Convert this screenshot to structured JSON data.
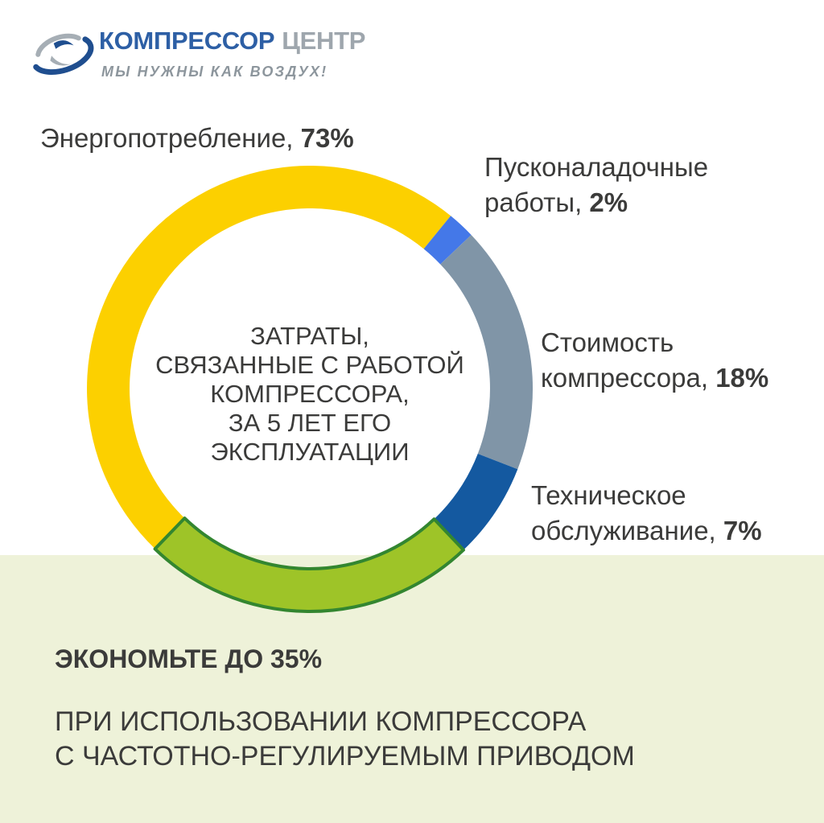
{
  "header": {
    "brand_primary": "КОМПРЕССОР",
    "brand_secondary": "ЦЕНТР",
    "tagline": "МЫ НУЖНЫ КАК ВОЗДУХ!",
    "brand_primary_color": "#2D5FA5",
    "brand_secondary_color": "#9EA6AD",
    "tagline_color": "#8D969D"
  },
  "chart_data": {
    "type": "pie",
    "subtype": "donut",
    "title": "ЗАТРАТЫ, СВЯЗАННЫЕ С РАБОТОЙ КОМПРЕССОРА, ЗА 5 ЛЕТ ЕГО ЭКСПЛУАТАЦИИ",
    "center_text": "ЗАТРАТЫ,\nСВЯЗАННЫЕ С РАБОТОЙ\nКОМПРЕССОРА,\nЗА 5 ЛЕТ ЕГО\nЭКСПЛУАТАЦИИ",
    "categories": [
      "Энергопотребление",
      "Пусконаладочные работы",
      "Стоимость компрессора",
      "Техническое обслуживание"
    ],
    "values": [
      73,
      2,
      18,
      7
    ],
    "colors": [
      "#FCD000",
      "#4478E8",
      "#8095A7",
      "#1459A0"
    ],
    "start_angle_deg": 136.4,
    "legend_position": "around",
    "labels": [
      {
        "text": "Энергопотребление, ",
        "pct": "73%"
      },
      {
        "text": "Пусконаладочные работы, ",
        "pct": "2%"
      },
      {
        "text": "Стоимость компрессора, ",
        "pct": "18%"
      },
      {
        "text": "Техническое обслуживание, ",
        "pct": "7%"
      }
    ],
    "overlay": {
      "sweep_deg": 87.6,
      "color": "#9EC428",
      "border_color": "#338630"
    }
  },
  "footer": {
    "headline": "ЭКОНОМЬТЕ ДО 35%",
    "body": "ПРИ ИСПОЛЬЗОВАНИИ КОМПРЕССОРА\nС ЧАСТОТНО-РЕГУЛИРУЕМЫМ ПРИВОДОМ",
    "background_color": "#EEF2D9"
  }
}
